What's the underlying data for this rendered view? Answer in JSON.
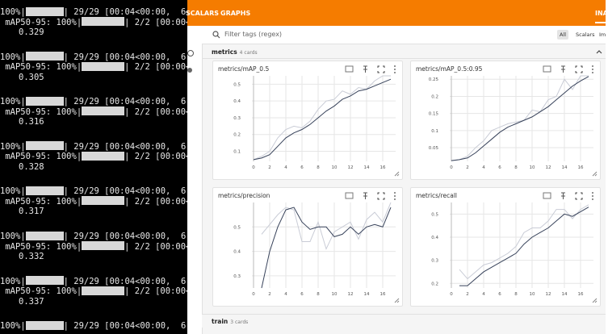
{
  "terminal": {
    "blocks": [
      {
        "line1_pre": "100%|",
        "line1_post": "| 29/29 [00:04<00:00,  6.",
        "line2_pre": " mAP50-95: 100%|",
        "line2_post": "| 2/2 [00:00<0",
        "value": "0.329"
      },
      {
        "line1_pre": "100%|",
        "line1_post": "| 29/29 [00:04<00:00,  6.",
        "line2_pre": " mAP50-95: 100%|",
        "line2_post": "| 2/2 [00:00<0",
        "value": "0.305"
      },
      {
        "line1_pre": "100%|",
        "line1_post": "| 29/29 [00:04<00:00,  6.",
        "line2_pre": " mAP50-95: 100%|",
        "line2_post": "| 2/2 [00:00<0",
        "value": "0.316"
      },
      {
        "line1_pre": "100%|",
        "line1_post": "| 29/29 [00:04<00:00,  6.",
        "line2_pre": " mAP50-95: 100%|",
        "line2_post": "| 2/2 [00:00<0",
        "value": "0.328"
      },
      {
        "line1_pre": "100%|",
        "line1_post": "| 29/29 [00:04<00:00,  6.",
        "line2_pre": " mAP50-95: 100%|",
        "line2_post": "| 2/2 [00:00<0",
        "value": "0.317"
      },
      {
        "line1_pre": "100%|",
        "line1_post": "| 29/29 [00:04<00:00,  6.",
        "line2_pre": " mAP50-95: 100%|",
        "line2_post": "| 2/2 [00:00<0",
        "value": "0.332"
      },
      {
        "line1_pre": "100%|",
        "line1_post": "| 29/29 [00:04<00:00,  6.",
        "line2_pre": " mAP50-95: 100%|",
        "line2_post": "| 2/2 [00:00<0",
        "value": "0.337"
      },
      {
        "line1_pre": "100%|",
        "line1_post": "| 29/29 [00:04<00:00,  6."
      }
    ]
  },
  "header": {
    "tabs": [
      "SCALARS",
      "GRAPHS"
    ],
    "active_tab": "INA"
  },
  "toolbar": {
    "search_placeholder": "Filter tags (regex)",
    "buttons": [
      "All",
      "Scalars",
      "Im"
    ]
  },
  "sections": [
    {
      "name": "metrics",
      "count": "4 cards"
    },
    {
      "name": "train",
      "count": "3 cards"
    }
  ],
  "cards": [
    {
      "title": "metrics/mAP_0.5",
      "xlim": [
        -0.2,
        17.6
      ],
      "ylim": [
        0.04,
        0.55
      ],
      "xticks": [
        0,
        2,
        4,
        6,
        8,
        10,
        12,
        14,
        16
      ],
      "yticks": [
        0.1,
        0.2,
        0.3,
        0.4,
        0.5
      ],
      "x": [
        0,
        1,
        2,
        3,
        4,
        5,
        6,
        7,
        8,
        9,
        10,
        11,
        12,
        13,
        14,
        15,
        16,
        17
      ],
      "raw": [
        0.05,
        0.07,
        0.1,
        0.18,
        0.23,
        0.25,
        0.24,
        0.28,
        0.35,
        0.4,
        0.41,
        0.46,
        0.44,
        0.48,
        0.47,
        0.52,
        0.55,
        0.55
      ],
      "smoothed": [
        0.05,
        0.06,
        0.08,
        0.13,
        0.18,
        0.21,
        0.23,
        0.26,
        0.3,
        0.34,
        0.37,
        0.41,
        0.43,
        0.46,
        0.47,
        0.49,
        0.51,
        0.53
      ]
    },
    {
      "title": "metrics/mAP_0.5:0.95",
      "xlim": [
        -0.2,
        17.6
      ],
      "ylim": [
        0.01,
        0.26
      ],
      "xticks": [
        0,
        2,
        4,
        6,
        8,
        10,
        12,
        14,
        16
      ],
      "yticks": [
        0.05,
        0.1,
        0.15,
        0.2,
        0.25
      ],
      "x": [
        0,
        1,
        2,
        3,
        4,
        5,
        6,
        7,
        8,
        9,
        10,
        11,
        12,
        13,
        14,
        15,
        16,
        17
      ],
      "raw": [
        0.012,
        0.015,
        0.025,
        0.05,
        0.07,
        0.1,
        0.11,
        0.12,
        0.125,
        0.13,
        0.16,
        0.155,
        0.19,
        0.2,
        0.25,
        0.22,
        0.26,
        0.26
      ],
      "smoothed": [
        0.012,
        0.015,
        0.02,
        0.035,
        0.055,
        0.075,
        0.095,
        0.11,
        0.12,
        0.13,
        0.14,
        0.155,
        0.17,
        0.19,
        0.21,
        0.23,
        0.245,
        0.258
      ]
    },
    {
      "title": "metrics/precision",
      "xlim": [
        -0.2,
        17.6
      ],
      "ylim": [
        0.25,
        0.6
      ],
      "xticks": [
        0,
        2,
        4,
        6,
        8,
        10,
        12,
        14,
        16
      ],
      "yticks": [
        0.3,
        0.4,
        0.5
      ],
      "x": [
        1,
        2,
        3,
        4,
        5,
        6,
        7,
        8,
        9,
        10,
        11,
        12,
        13,
        14,
        15,
        16,
        17
      ],
      "raw": [
        0.47,
        0.51,
        0.55,
        0.58,
        0.57,
        0.44,
        0.44,
        0.52,
        0.41,
        0.48,
        0.5,
        0.52,
        0.45,
        0.53,
        0.56,
        0.52,
        0.6
      ],
      "smoothed": [
        0.25,
        0.4,
        0.5,
        0.57,
        0.58,
        0.52,
        0.49,
        0.5,
        0.5,
        0.46,
        0.47,
        0.5,
        0.47,
        0.5,
        0.51,
        0.5,
        0.58
      ]
    },
    {
      "title": "metrics/recall",
      "xlim": [
        -0.2,
        17.6
      ],
      "ylim": [
        0.18,
        0.55
      ],
      "xticks": [
        0,
        2,
        4,
        6,
        8,
        10,
        12,
        14,
        16
      ],
      "yticks": [
        0.2,
        0.3,
        0.4,
        0.5
      ],
      "x": [
        1,
        2,
        3,
        4,
        5,
        6,
        7,
        8,
        9,
        10,
        11,
        12,
        13,
        14,
        15,
        16,
        17
      ],
      "raw": [
        0.26,
        0.22,
        0.25,
        0.28,
        0.29,
        0.31,
        0.33,
        0.36,
        0.42,
        0.44,
        0.44,
        0.47,
        0.52,
        0.52,
        0.48,
        0.52,
        0.54
      ],
      "smoothed": [
        0.19,
        0.19,
        0.22,
        0.25,
        0.27,
        0.29,
        0.31,
        0.33,
        0.37,
        0.4,
        0.42,
        0.44,
        0.47,
        0.5,
        0.49,
        0.51,
        0.53
      ]
    }
  ]
}
